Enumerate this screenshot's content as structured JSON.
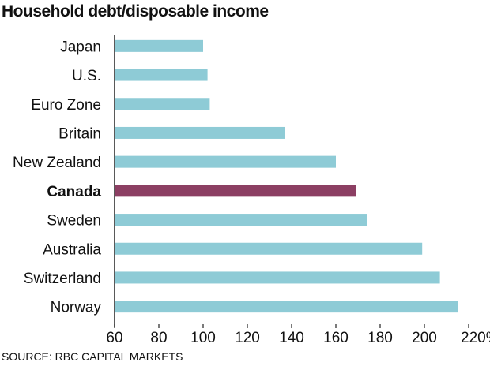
{
  "chart_data": {
    "type": "bar",
    "orientation": "horizontal",
    "title": "Household debt/disposable income",
    "source": "SOURCE: RBC CAPITAL MARKETS",
    "xlabel": "",
    "ylabel": "",
    "categories": [
      "Japan",
      "U.S.",
      "Euro Zone",
      "Britain",
      "New Zealand",
      "Canada",
      "Sweden",
      "Australia",
      "Switzerland",
      "Norway"
    ],
    "values": [
      100,
      102,
      103,
      137,
      160,
      169,
      174,
      199,
      207,
      215
    ],
    "highlight": "Canada",
    "xlim": [
      60,
      220
    ],
    "xticks": [
      60,
      80,
      100,
      120,
      140,
      160,
      180,
      200,
      220
    ],
    "xtick_labels": [
      "60",
      "80",
      "100",
      "120",
      "140",
      "160",
      "180",
      "200",
      "220%"
    ],
    "grid": false,
    "colors": {
      "bar": "#8ecbd6",
      "highlight": "#8c3f63",
      "axis": "#222222"
    }
  }
}
